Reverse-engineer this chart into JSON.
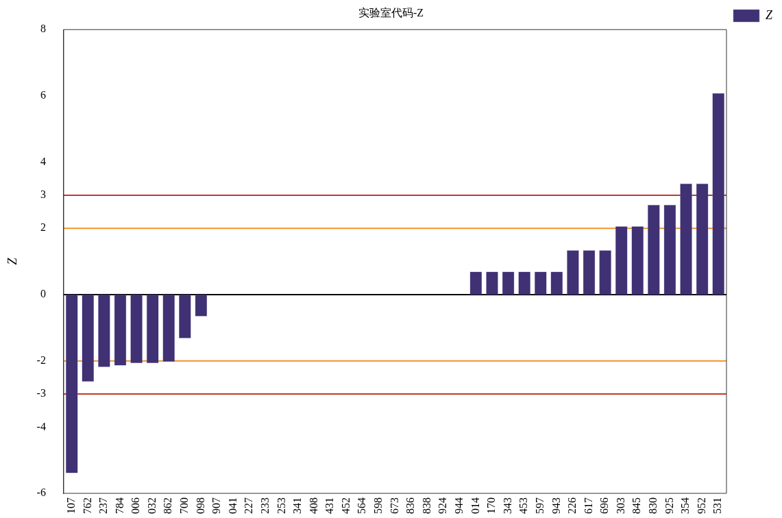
{
  "chart_data": {
    "type": "bar",
    "title": "实验室代码-Z",
    "ylabel": "Z",
    "categories": [
      "107",
      "762",
      "237",
      "784",
      "006",
      "032",
      "862",
      "700",
      "098",
      "907",
      "041",
      "227",
      "233",
      "253",
      "341",
      "408",
      "431",
      "452",
      "564",
      "598",
      "673",
      "836",
      "838",
      "924",
      "944",
      "014",
      "170",
      "343",
      "453",
      "597",
      "943",
      "226",
      "617",
      "696",
      "303",
      "845",
      "830",
      "925",
      "354",
      "952",
      "531"
    ],
    "series": [
      {
        "name": "Z",
        "color": "#3f3173",
        "values": [
          -5.39,
          -2.63,
          -2.19,
          -2.14,
          -2.07,
          -2.07,
          -2.03,
          -1.32,
          -0.66,
          0,
          0,
          0,
          0,
          0,
          0,
          0,
          0,
          0,
          0,
          0,
          0,
          0,
          0,
          0,
          0,
          0.69,
          0.69,
          0.69,
          0.69,
          0.69,
          0.69,
          1.34,
          1.34,
          1.34,
          2.06,
          2.06,
          2.71,
          2.71,
          3.35,
          3.35,
          6.08
        ]
      }
    ],
    "ylim": [
      -6,
      8
    ],
    "yticks": [
      -6,
      -4,
      -3,
      -2,
      0,
      2,
      3,
      4,
      6,
      8
    ],
    "ref_lines": [
      {
        "axis": "y",
        "value": 3,
        "color": "#c0392b"
      },
      {
        "axis": "y",
        "value": 2,
        "color": "#f0932b"
      },
      {
        "axis": "y",
        "value": -2,
        "color": "#f0932b"
      },
      {
        "axis": "y",
        "value": -3,
        "color": "#c0392b"
      },
      {
        "axis": "y",
        "value": 0,
        "color": "#000000"
      }
    ],
    "legend": "top right",
    "grid": false
  }
}
